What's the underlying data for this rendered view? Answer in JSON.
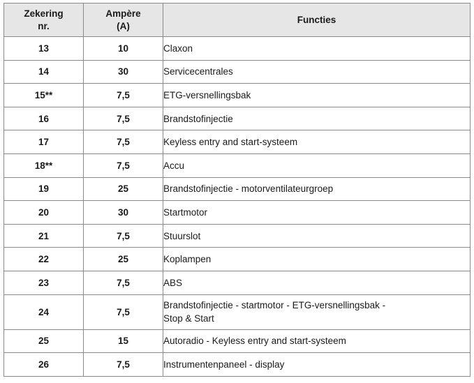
{
  "table": {
    "headers": {
      "fuse_line1": "Zekering",
      "fuse_line2": "nr.",
      "amp_line1": "Ampère",
      "amp_line2": "(A)",
      "functions": "Functies"
    },
    "rows": [
      {
        "fuse": "13",
        "amp": "10",
        "func": "Claxon"
      },
      {
        "fuse": "14",
        "amp": "30",
        "func": "Servicecentrales"
      },
      {
        "fuse": "15**",
        "amp": "7,5",
        "func": "ETG-versnellingsbak"
      },
      {
        "fuse": "16",
        "amp": "7,5",
        "func": "Brandstofinjectie"
      },
      {
        "fuse": "17",
        "amp": "7,5",
        "func": "Keyless entry and start-systeem"
      },
      {
        "fuse": "18**",
        "amp": "7,5",
        "func": "Accu"
      },
      {
        "fuse": "19",
        "amp": "25",
        "func": "Brandstofinjectie - motorventilateurgroep"
      },
      {
        "fuse": "20",
        "amp": "30",
        "func": "Startmotor"
      },
      {
        "fuse": "21",
        "amp": "7,5",
        "func": "Stuurslot"
      },
      {
        "fuse": "22",
        "amp": "25",
        "func": "Koplampen"
      },
      {
        "fuse": "23",
        "amp": "7,5",
        "func": "ABS"
      },
      {
        "fuse": "24",
        "amp": "7,5",
        "func": "Brandstofinjectie - startmotor - ETG-versnellingsbak -",
        "func2": "Stop & Start"
      },
      {
        "fuse": "25",
        "amp": "15",
        "func": "Autoradio - Keyless entry and start-systeem"
      },
      {
        "fuse": "26",
        "amp": "7,5",
        "func": "Instrumentenpaneel - display"
      }
    ]
  }
}
